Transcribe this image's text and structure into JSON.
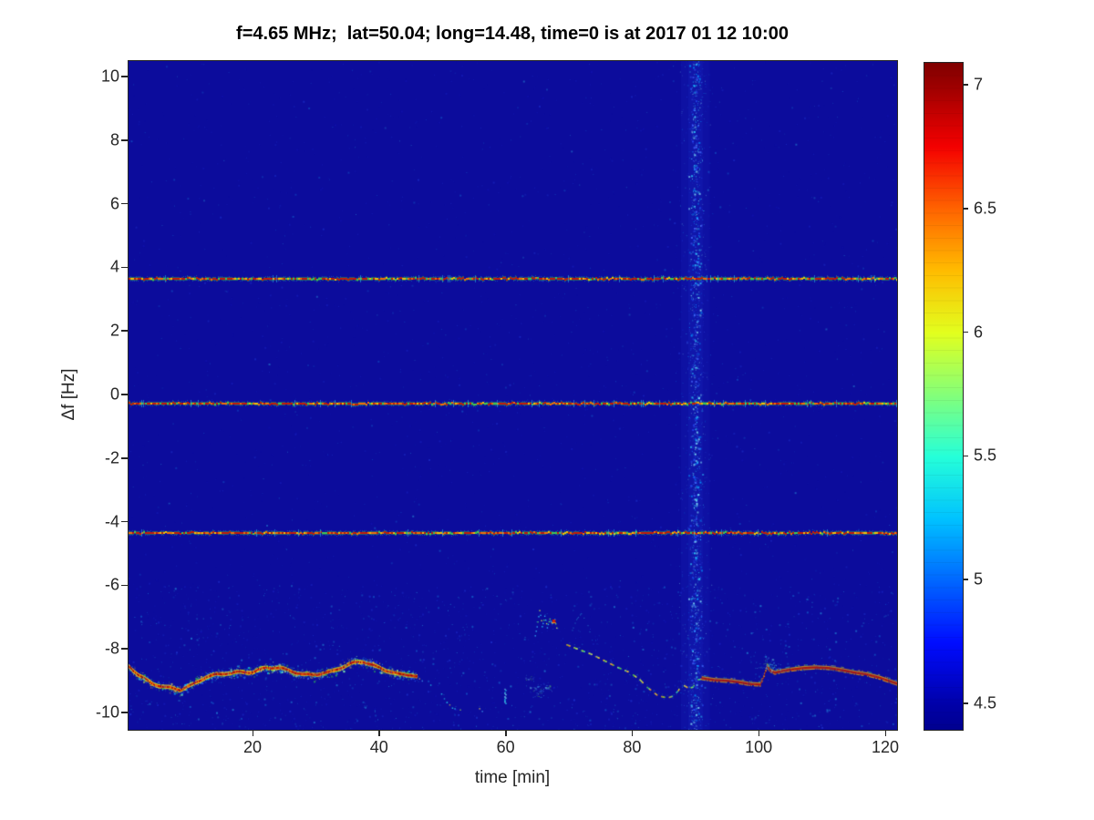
{
  "figure": {
    "background": "#ffffff",
    "axis_color": "#262626",
    "title_color": "#000000"
  },
  "chart_data": {
    "type": "heatmap",
    "title": "f=4.65 MHz;  lat=50.04; long=14.48, time=0 is at 2017 01 12 10:00",
    "xlabel": "time [min]",
    "ylabel": "Δf [Hz]",
    "xlim": [
      0.4,
      121.9
    ],
    "ylim": [
      -10.5,
      10.5
    ],
    "x_ticks": [
      20,
      40,
      60,
      80,
      100,
      120
    ],
    "y_ticks": [
      10,
      8,
      6,
      4,
      2,
      0,
      -2,
      -4,
      -6,
      -8,
      -10
    ],
    "grid": false,
    "colormap": "jet",
    "background_value_color": "#0c0c9c",
    "colorbar": {
      "min": 4.4,
      "max": 7.09,
      "ticks": [
        7,
        6.5,
        6,
        5.5,
        5,
        4.5
      ],
      "position": "right"
    },
    "carrier_lines_hz": [
      3.63,
      -0.3,
      -4.36
    ],
    "noise_band": {
      "center_min": 90,
      "sigma_min": 1.0,
      "visible_range_min": [
        84,
        96
      ]
    },
    "trace_segments": [
      {
        "name": "main-trace-early",
        "style": "thick",
        "points": [
          [
            0.4,
            -8.55
          ],
          [
            2,
            -8.8
          ],
          [
            4,
            -9.05
          ],
          [
            6,
            -9.18
          ],
          [
            8.5,
            -9.3
          ],
          [
            10.5,
            -9.15
          ],
          [
            12.5,
            -8.9
          ],
          [
            14,
            -8.8
          ],
          [
            16,
            -8.72
          ],
          [
            18,
            -8.7
          ],
          [
            20,
            -8.73
          ],
          [
            22,
            -8.62
          ],
          [
            24,
            -8.62
          ],
          [
            26,
            -8.7
          ],
          [
            28,
            -8.78
          ],
          [
            30,
            -8.76
          ],
          [
            32,
            -8.72
          ],
          [
            34,
            -8.6
          ],
          [
            36,
            -8.46
          ],
          [
            37.5,
            -8.42
          ],
          [
            39,
            -8.52
          ],
          [
            41,
            -8.64
          ],
          [
            43,
            -8.76
          ],
          [
            45,
            -8.8
          ],
          [
            46,
            -8.88
          ]
        ]
      },
      {
        "name": "trace-breakup-dots",
        "style": "dots",
        "points": [
          [
            46.3,
            -8.95
          ],
          [
            47.5,
            -9.05
          ],
          [
            48.5,
            -9.15
          ],
          [
            49.5,
            -9.35
          ],
          [
            50.5,
            -9.6
          ],
          [
            51.6,
            -9.85
          ],
          [
            53.2,
            -9.95
          ]
        ]
      },
      {
        "name": "stray-dots",
        "style": "dots",
        "points": [
          [
            55.5,
            -9.85
          ],
          [
            56.6,
            -9.95
          ]
        ]
      },
      {
        "name": "isolated-dash",
        "style": "vdash",
        "points": [
          [
            59.8,
            -9.25
          ],
          [
            59.8,
            -9.75
          ]
        ]
      },
      {
        "name": "squiggle-cluster",
        "style": "squiggle",
        "marker": [
          67.6,
          -7.12
        ],
        "points": [
          [
            64.6,
            -7.6
          ],
          [
            65.0,
            -7.1
          ],
          [
            65.3,
            -6.78
          ],
          [
            65.7,
            -7.3
          ],
          [
            66.1,
            -6.92
          ],
          [
            66.5,
            -7.35
          ],
          [
            66.9,
            -7.02
          ],
          [
            67.3,
            -7.18
          ],
          [
            67.7,
            -7.08
          ],
          [
            68.2,
            -7.4
          ]
        ]
      },
      {
        "name": "squiggle-arc",
        "style": "arc",
        "points": [
          [
            70.2,
            -7.55
          ],
          [
            71,
            -7.1
          ],
          [
            71.9,
            -6.88
          ],
          [
            72.8,
            -7.15
          ],
          [
            73.4,
            -7.55
          ]
        ]
      },
      {
        "name": "descent-dashed",
        "style": "dashed",
        "points": [
          [
            69.6,
            -7.85
          ],
          [
            71.5,
            -8.0
          ],
          [
            73.5,
            -8.15
          ],
          [
            75.5,
            -8.35
          ],
          [
            77.5,
            -8.55
          ],
          [
            79.5,
            -8.72
          ],
          [
            81,
            -8.92
          ],
          [
            82.5,
            -9.22
          ],
          [
            84,
            -9.45
          ],
          [
            85.5,
            -9.52
          ],
          [
            86.5,
            -9.45
          ],
          [
            87.3,
            -9.25
          ],
          [
            88,
            -9.12
          ],
          [
            88.8,
            -9.22
          ],
          [
            89.5,
            -9.18
          ],
          [
            90.2,
            -8.95
          ],
          [
            91,
            -8.92
          ]
        ]
      },
      {
        "name": "main-trace-late",
        "style": "redline",
        "points": [
          [
            91,
            -8.92
          ],
          [
            93,
            -8.98
          ],
          [
            95,
            -9.0
          ],
          [
            97,
            -9.05
          ],
          [
            98.5,
            -9.1
          ],
          [
            100.2,
            -9.12
          ],
          [
            100.7,
            -8.9
          ],
          [
            101.3,
            -8.55
          ],
          [
            101.8,
            -8.68
          ],
          [
            102.5,
            -8.75
          ],
          [
            103.5,
            -8.7
          ],
          [
            105,
            -8.65
          ],
          [
            107,
            -8.6
          ],
          [
            109,
            -8.58
          ],
          [
            111,
            -8.6
          ],
          [
            113,
            -8.66
          ],
          [
            115,
            -8.74
          ],
          [
            117,
            -8.8
          ],
          [
            119,
            -8.9
          ],
          [
            120.5,
            -9.0
          ],
          [
            121.9,
            -9.1
          ]
        ]
      },
      {
        "name": "spike-speckle",
        "style": "cluster",
        "points": [
          [
            100.6,
            -8.5
          ],
          [
            101.3,
            -8.35
          ],
          [
            102,
            -8.5
          ],
          [
            102.8,
            -8.6
          ]
        ]
      },
      {
        "name": "faint-curl",
        "style": "cluster",
        "points": [
          [
            63.8,
            -8.9
          ],
          [
            64.5,
            -9.2
          ],
          [
            65.5,
            -9.4
          ],
          [
            66.5,
            -9.2
          ]
        ]
      }
    ]
  }
}
